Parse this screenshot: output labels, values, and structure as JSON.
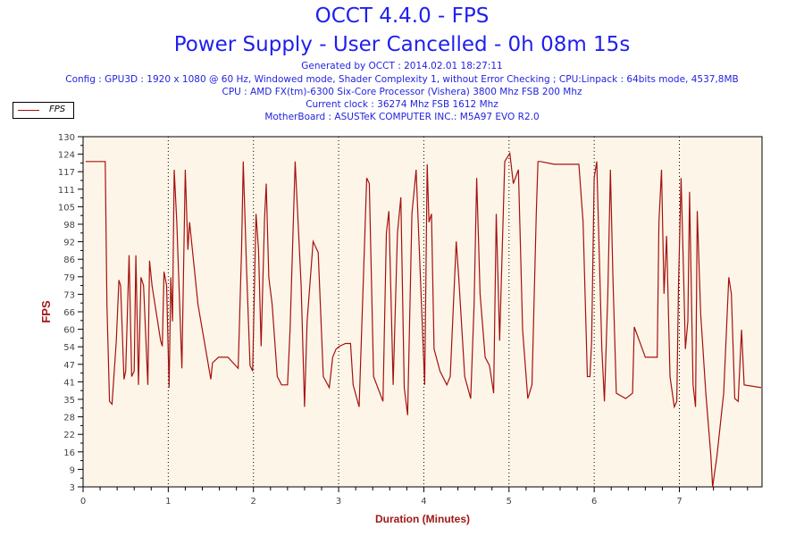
{
  "header": {
    "title": "OCCT 4.4.0 - FPS",
    "subtitle": "Power Supply - User Cancelled - 0h 08m 15s",
    "generated": "Generated by OCCT : 2014.02.01 18:27:11",
    "config": "Config : GPU3D : 1920 x 1080 @ 60 Hz, Windowed mode, Shader Complexity 1, without Error Checking ; CPU:Linpack : 64bits mode, 4537,8MB",
    "cpu": "CPU : AMD FX(tm)-6300 Six-Core Processor (Vishera) 3800 Mhz FSB 200 Mhz",
    "clock": "Current clock : 36274 Mhz FSB 1612 Mhz",
    "motherboard": "MotherBoard : ASUSTeK COMPUTER INC.: M5A97 EVO R2.0"
  },
  "chart_data": {
    "type": "line",
    "title": "OCCT 4.4.0 - FPS",
    "xlabel": "Duration (Minutes)",
    "ylabel": "FPS",
    "xlim": [
      0,
      7.97
    ],
    "ylim": [
      3,
      130
    ],
    "x_ticks": [
      "0",
      "1",
      "2",
      "3",
      "4",
      "5",
      "6",
      "7"
    ],
    "y_ticks": [
      "130",
      "124",
      "117",
      "111",
      "105",
      "98",
      "92",
      "86",
      "79",
      "73",
      "66",
      "60",
      "54",
      "47",
      "41",
      "35",
      "28",
      "22",
      "16",
      "9",
      "3"
    ],
    "grid": "vertical dotted at each minute",
    "legend": {
      "position": "top-left",
      "entries": [
        "FPS"
      ]
    },
    "colors": {
      "line": "#a51010",
      "plot_bg": "#fdf6e8",
      "axis_label": "#a01818"
    },
    "series": [
      {
        "name": "FPS",
        "points": [
          [
            0.03,
            121
          ],
          [
            0.26,
            121
          ],
          [
            0.28,
            69
          ],
          [
            0.31,
            34
          ],
          [
            0.34,
            33
          ],
          [
            0.39,
            56
          ],
          [
            0.42,
            78
          ],
          [
            0.44,
            76
          ],
          [
            0.48,
            42
          ],
          [
            0.5,
            45
          ],
          [
            0.54,
            87
          ],
          [
            0.57,
            43
          ],
          [
            0.6,
            45
          ],
          [
            0.62,
            87
          ],
          [
            0.65,
            40
          ],
          [
            0.68,
            79
          ],
          [
            0.71,
            76
          ],
          [
            0.76,
            40
          ],
          [
            0.78,
            85
          ],
          [
            0.81,
            76
          ],
          [
            0.91,
            56
          ],
          [
            0.93,
            54
          ],
          [
            0.95,
            81
          ],
          [
            0.98,
            76
          ],
          [
            1.01,
            39
          ],
          [
            1.03,
            79
          ],
          [
            1.05,
            63
          ],
          [
            1.07,
            118
          ],
          [
            1.1,
            99
          ],
          [
            1.16,
            46
          ],
          [
            1.2,
            118
          ],
          [
            1.23,
            89
          ],
          [
            1.25,
            99
          ],
          [
            1.35,
            69
          ],
          [
            1.5,
            42
          ],
          [
            1.52,
            48
          ],
          [
            1.59,
            50
          ],
          [
            1.7,
            50
          ],
          [
            1.82,
            46
          ],
          [
            1.86,
            89
          ],
          [
            1.88,
            121
          ],
          [
            1.92,
            81
          ],
          [
            1.96,
            47
          ],
          [
            1.99,
            45
          ],
          [
            2.03,
            102
          ],
          [
            2.06,
            89
          ],
          [
            2.09,
            54
          ],
          [
            2.13,
            100
          ],
          [
            2.15,
            113
          ],
          [
            2.18,
            79
          ],
          [
            2.22,
            69
          ],
          [
            2.28,
            43
          ],
          [
            2.33,
            40
          ],
          [
            2.4,
            40
          ],
          [
            2.43,
            60
          ],
          [
            2.49,
            121
          ],
          [
            2.56,
            76
          ],
          [
            2.6,
            32
          ],
          [
            2.63,
            63
          ],
          [
            2.7,
            92
          ],
          [
            2.76,
            88
          ],
          [
            2.82,
            43
          ],
          [
            2.89,
            39
          ],
          [
            2.93,
            50
          ],
          [
            2.97,
            53
          ],
          [
            3.01,
            54
          ],
          [
            3.08,
            55
          ],
          [
            3.14,
            55
          ],
          [
            3.17,
            40
          ],
          [
            3.24,
            32
          ],
          [
            3.33,
            115
          ],
          [
            3.36,
            113
          ],
          [
            3.41,
            43
          ],
          [
            3.52,
            34
          ],
          [
            3.56,
            95
          ],
          [
            3.59,
            103
          ],
          [
            3.64,
            40
          ],
          [
            3.69,
            95
          ],
          [
            3.73,
            108
          ],
          [
            3.77,
            39
          ],
          [
            3.81,
            29
          ],
          [
            3.86,
            102
          ],
          [
            3.91,
            118
          ],
          [
            3.96,
            79
          ],
          [
            4.01,
            40
          ],
          [
            4.04,
            120
          ],
          [
            4.06,
            99
          ],
          [
            4.09,
            102
          ],
          [
            4.12,
            53
          ],
          [
            4.19,
            45
          ],
          [
            4.27,
            40
          ],
          [
            4.31,
            43
          ],
          [
            4.38,
            92
          ],
          [
            4.41,
            79
          ],
          [
            4.48,
            43
          ],
          [
            4.55,
            35
          ],
          [
            4.59,
            69
          ],
          [
            4.62,
            115
          ],
          [
            4.66,
            73
          ],
          [
            4.72,
            50
          ],
          [
            4.77,
            47
          ],
          [
            4.82,
            37
          ],
          [
            4.85,
            102
          ],
          [
            4.89,
            56
          ],
          [
            4.95,
            121
          ],
          [
            5.01,
            124
          ],
          [
            5.05,
            113
          ],
          [
            5.11,
            118
          ],
          [
            5.13,
            95
          ],
          [
            5.16,
            60
          ],
          [
            5.22,
            35
          ],
          [
            5.27,
            40
          ],
          [
            5.32,
            102
          ],
          [
            5.34,
            121
          ],
          [
            5.37,
            121
          ],
          [
            5.53,
            120
          ],
          [
            5.82,
            120
          ],
          [
            5.87,
            99
          ],
          [
            5.92,
            43
          ],
          [
            5.95,
            43
          ],
          [
            5.97,
            56
          ],
          [
            6.0,
            115
          ],
          [
            6.03,
            121
          ],
          [
            6.09,
            53
          ],
          [
            6.12,
            34
          ],
          [
            6.16,
            73
          ],
          [
            6.19,
            118
          ],
          [
            6.22,
            79
          ],
          [
            6.26,
            37
          ],
          [
            6.37,
            35
          ],
          [
            6.45,
            37
          ],
          [
            6.47,
            61
          ],
          [
            6.6,
            50
          ],
          [
            6.74,
            50
          ],
          [
            6.76,
            99
          ],
          [
            6.79,
            118
          ],
          [
            6.82,
            73
          ],
          [
            6.85,
            94
          ],
          [
            6.89,
            43
          ],
          [
            6.94,
            32
          ],
          [
            6.97,
            34
          ],
          [
            6.99,
            76
          ],
          [
            7.02,
            115
          ],
          [
            7.05,
            79
          ],
          [
            7.07,
            53
          ],
          [
            7.1,
            63
          ],
          [
            7.12,
            110
          ],
          [
            7.16,
            40
          ],
          [
            7.19,
            32
          ],
          [
            7.21,
            103
          ],
          [
            7.25,
            66
          ],
          [
            7.31,
            37
          ],
          [
            7.37,
            14
          ],
          [
            7.39,
            3
          ],
          [
            7.44,
            14
          ],
          [
            7.52,
            37
          ],
          [
            7.58,
            79
          ],
          [
            7.61,
            73
          ],
          [
            7.65,
            35
          ],
          [
            7.69,
            34
          ],
          [
            7.73,
            60
          ],
          [
            7.76,
            40
          ],
          [
            7.96,
            39
          ]
        ]
      }
    ]
  }
}
